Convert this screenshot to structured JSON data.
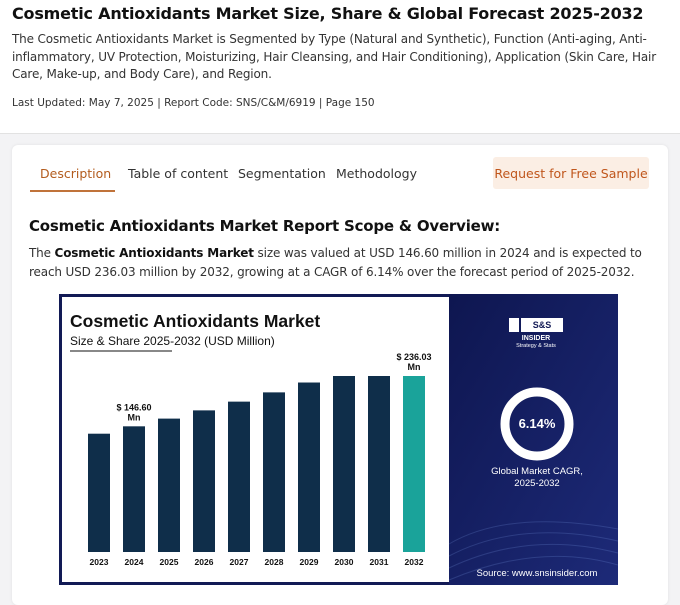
{
  "header": {
    "title": "Cosmetic Antioxidants Market Size, Share & Global Forecast 2025-2032",
    "description": "The Cosmetic Antioxidants Market is Segmented by Type (Natural and Synthetic), Function (Anti-aging, Anti-inflammatory, UV Protection, Moisturizing, Hair Cleansing, and Hair Conditioning), Application (Skin Care, Hair Care, Make-up, and Body Care), and Region.",
    "meta": "Last Updated: May 7, 2025 | Report Code: SNS/C&M/6919 | Page 150"
  },
  "tabs": [
    {
      "label": "Description",
      "active": true
    },
    {
      "label": "Table of content",
      "active": false
    },
    {
      "label": "Segmentation",
      "active": false
    },
    {
      "label": "Methodology",
      "active": false
    }
  ],
  "sample_button": "Request for Free Sample",
  "section": {
    "title": "Cosmetic Antioxidants Market Report Scope & Overview:",
    "para_prefix": "The ",
    "para_bold": "Cosmetic Antioxidants Market",
    "para_rest": " size was valued at USD 146.60 million in 2024 and is expected to reach USD 236.03 million by 2032, growing at a CAGR of 6.14% over the forecast period of 2025-2032."
  },
  "infographic": {
    "title": "Cosmetic Antioxidants Market",
    "subtitle": "Size & Share 2025-2032 (USD Million)",
    "logo_line1": "S&S",
    "logo_line2": "INSIDER",
    "logo_tagline": "Strategy & Stats",
    "cagr": "6.14%",
    "cagr_label_1": "Global Market CAGR,",
    "cagr_label_2": "2025-2032",
    "source": "Source: www.snsinsider.com",
    "colors": {
      "bar": "#0f2e4a",
      "bar_highlight": "#1aa39a",
      "panel": "#121a55"
    }
  },
  "chart_data": {
    "type": "bar",
    "title": "Cosmetic Antioxidants Market",
    "subtitle": "Size & Share 2025-2032 (USD Million)",
    "categories": [
      "2023",
      "2024",
      "2025",
      "2026",
      "2027",
      "2028",
      "2029",
      "2030",
      "2031",
      "2032"
    ],
    "values": [
      138,
      146.6,
      155.6,
      165.2,
      175.4,
      186.2,
      197.7,
      209.8,
      222.7,
      236.03
    ],
    "highlight_index": 9,
    "annotations": [
      {
        "index": 1,
        "line1": "$ 146.60",
        "line2": "Mn"
      },
      {
        "index": 9,
        "line1": "$ 236.03",
        "line2": "Mn"
      }
    ],
    "ylim": [
      0,
      250
    ],
    "grid": false
  }
}
